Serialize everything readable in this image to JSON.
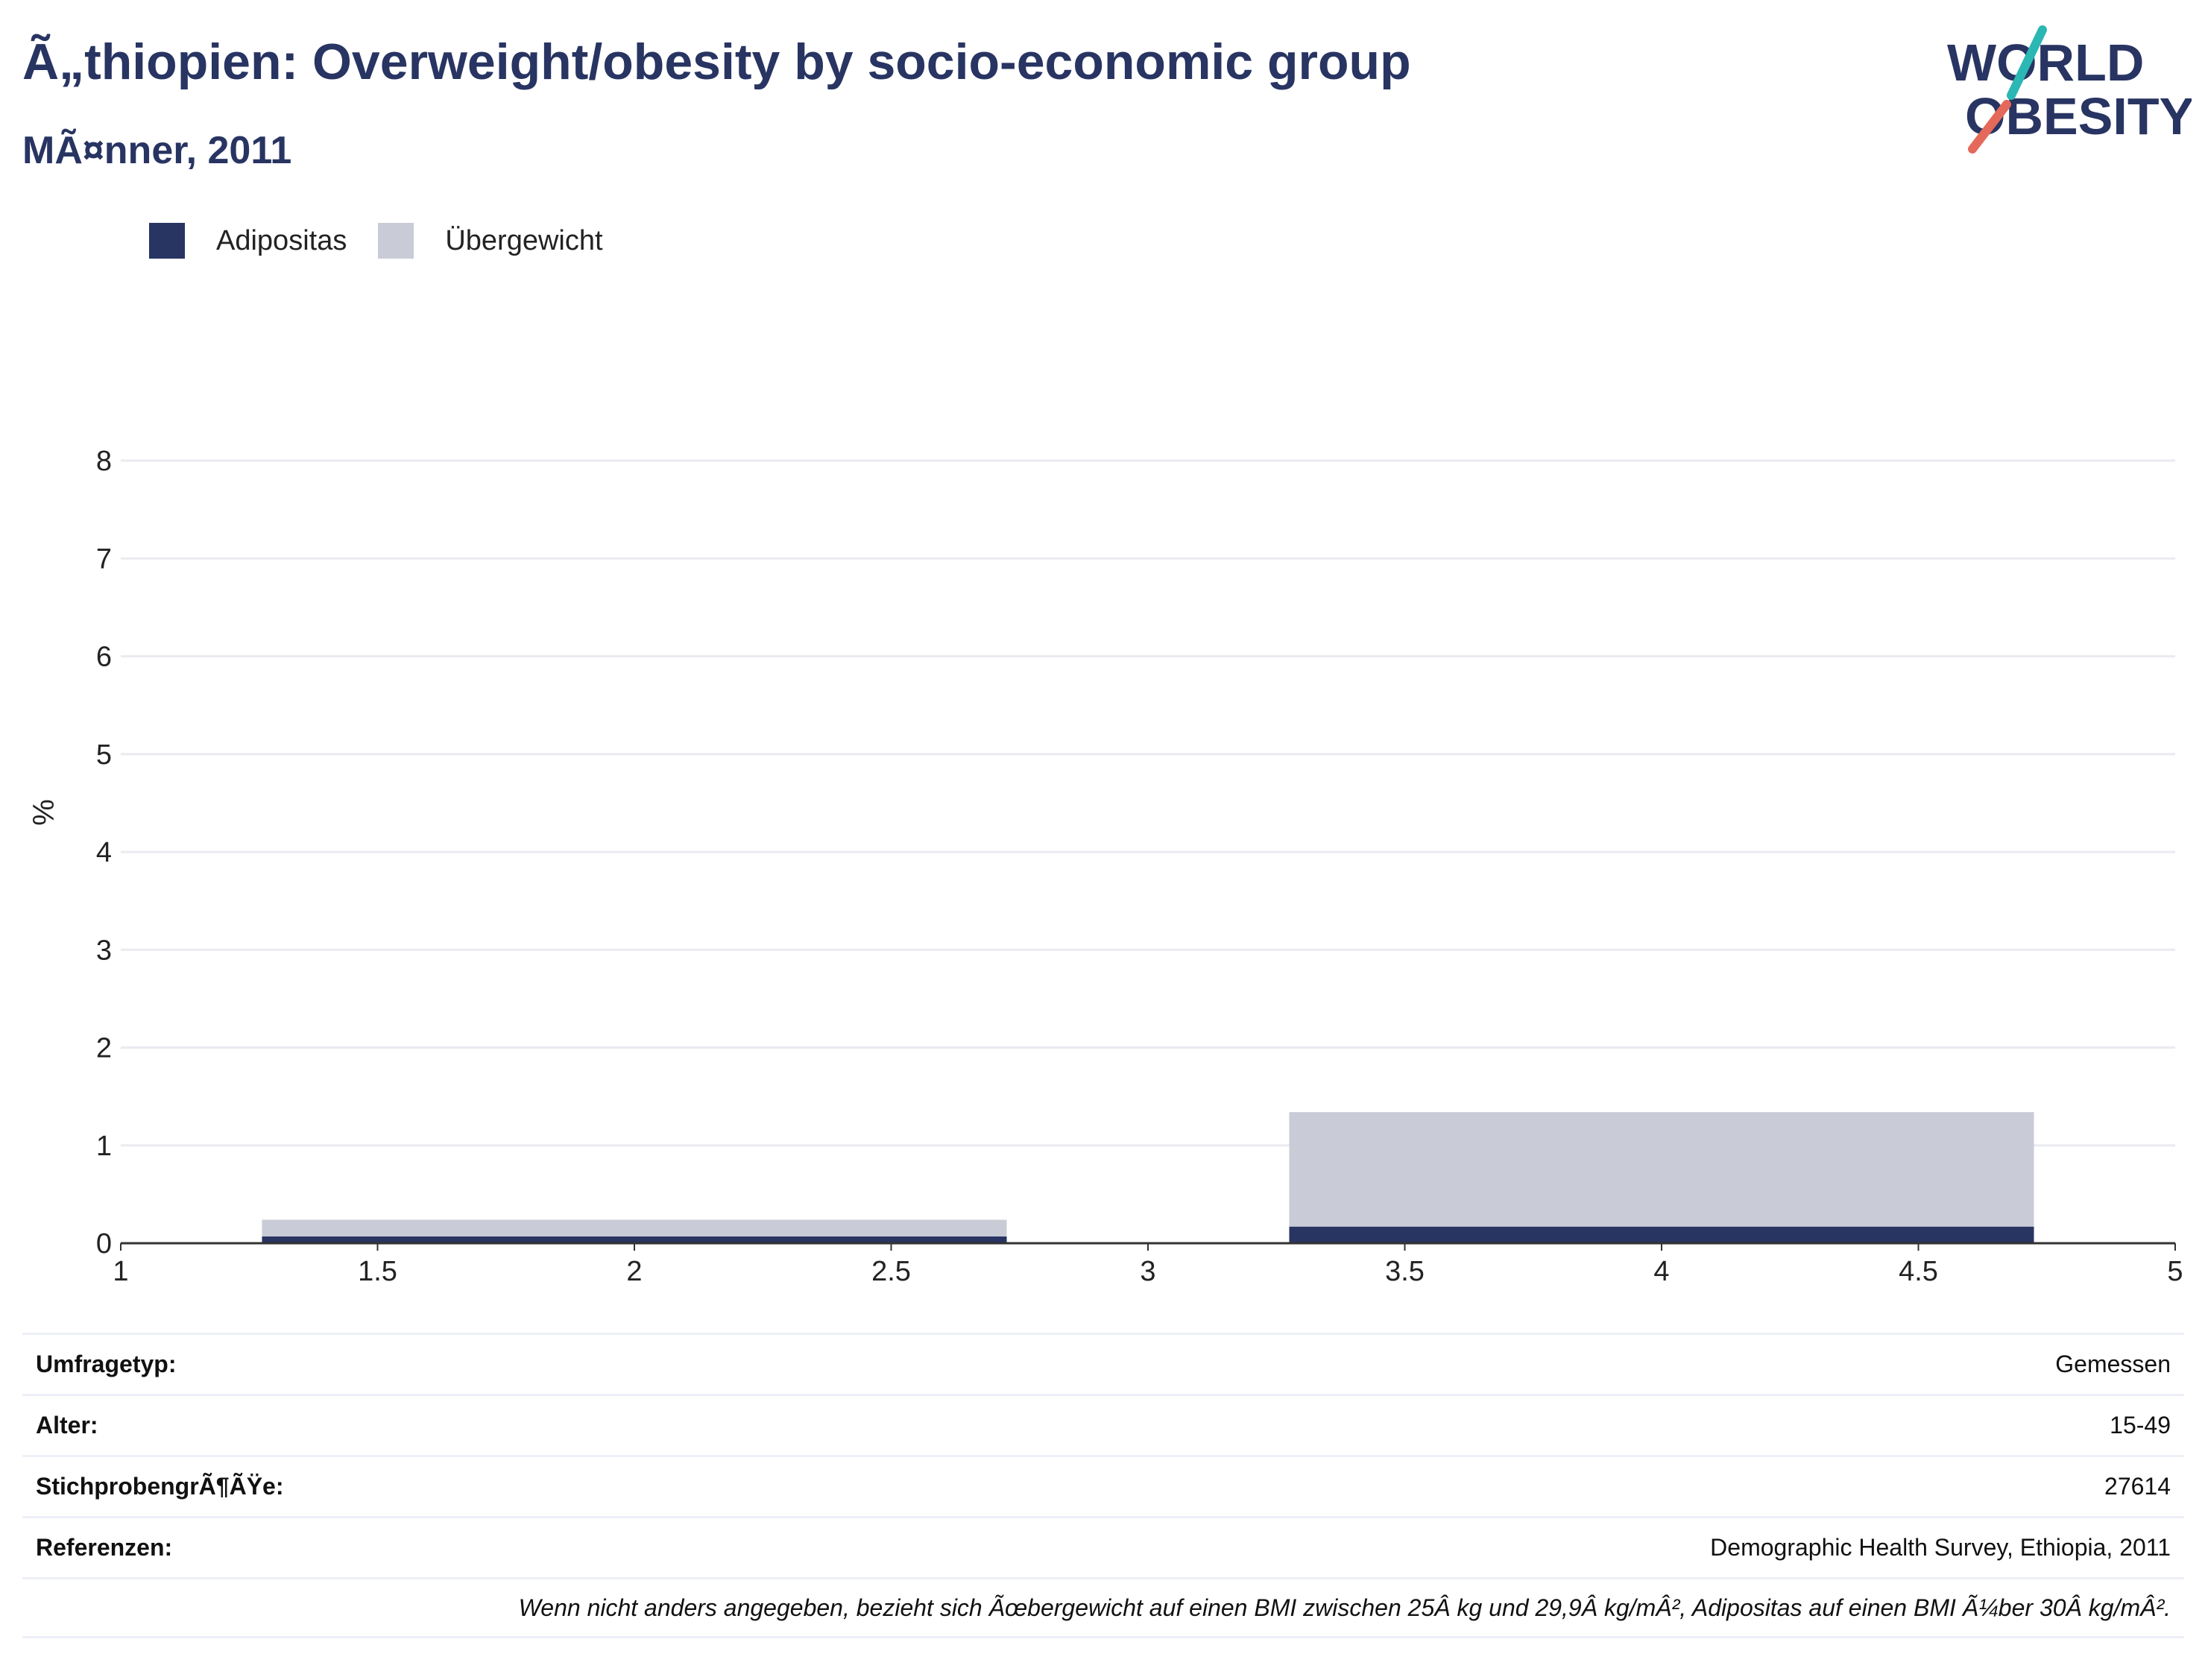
{
  "header": {
    "title": "Ã„thiopien: Overweight/obesity by socio-economic group",
    "subtitle": "MÃ¤nner, 2011"
  },
  "logo": {
    "line1": "WORLD",
    "line2": "OBESITY",
    "text_color": "#283462",
    "slash_top_color": "#2bb7b3",
    "slash_bottom_color": "#e4695a"
  },
  "legend": [
    {
      "name": "Adipositas",
      "color": "#283462"
    },
    {
      "name": "Übergewicht",
      "color": "#c9ccd7"
    }
  ],
  "chart_data": {
    "type": "bar",
    "stacked": true,
    "x": [
      2,
      4
    ],
    "bar_width": 1.45,
    "series": [
      {
        "name": "Adipositas",
        "color": "#283462",
        "values": [
          0.07,
          0.17
        ]
      },
      {
        "name": "Übergewicht",
        "color": "#c9ccd7",
        "values": [
          0.17,
          1.17
        ]
      }
    ],
    "xlim": [
      1,
      5
    ],
    "ylim": [
      0,
      8
    ],
    "xticks": [
      1,
      1.5,
      2,
      2.5,
      3,
      3.5,
      4,
      4.5,
      5
    ],
    "xtick_labels": [
      "1",
      "1.5",
      "2",
      "2.5",
      "3",
      "3.5",
      "4",
      "4.5",
      "5"
    ],
    "yticks": [
      0,
      1,
      2,
      3,
      4,
      5,
      6,
      7,
      8
    ],
    "ytick_labels": [
      "0",
      "1",
      "2",
      "3",
      "4",
      "5",
      "6",
      "7",
      "8"
    ],
    "ylabel": "%",
    "grid": true,
    "legend_position": "top-left"
  },
  "info_table": [
    {
      "label": "Umfragetyp:",
      "value": "Gemessen"
    },
    {
      "label": "Alter:",
      "value": "15-49"
    },
    {
      "label": "StichprobengrÃ¶ÃŸe:",
      "value": "27614"
    },
    {
      "label": "Referenzen:",
      "value": "Demographic Health Survey, Ethiopia, 2011"
    }
  ],
  "footnote": "Wenn nicht anders angegeben, bezieht sich Ãœbergewicht auf einen BMI zwischen 25Â kg und 29,9Â kg/mÂ², Adipositas auf einen BMI Ã¼ber 30Â kg/mÂ²."
}
